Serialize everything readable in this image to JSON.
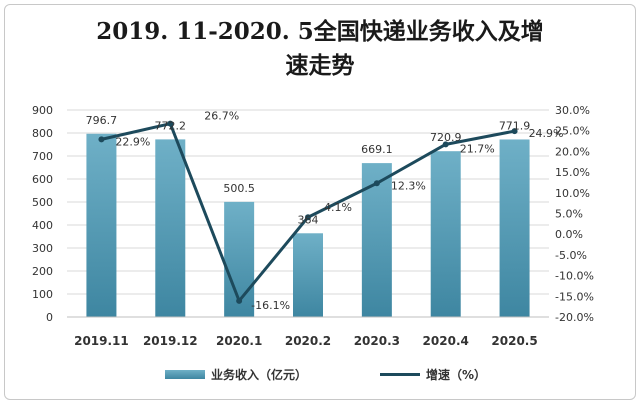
{
  "chart_data": {
    "type": "bar+line",
    "title_line1": "2019. 11-2020. 5全国快递业务收入及增",
    "title_line2": "速走势",
    "categories": [
      "2019.11",
      "2019.12",
      "2020.1",
      "2020.2",
      "2020.3",
      "2020.4",
      "2020.5"
    ],
    "series": [
      {
        "name": "业务收入（亿元）",
        "type": "bar",
        "axis": "left",
        "values": [
          796.7,
          772.2,
          500.5,
          364,
          669.1,
          720.9,
          771.9
        ],
        "labels": [
          "796.7",
          "772.2",
          "500.5",
          "364",
          "669.1",
          "720.9",
          "771.9"
        ]
      },
      {
        "name": "增速（%）",
        "type": "line",
        "axis": "right",
        "values": [
          22.9,
          26.7,
          -16.1,
          4.1,
          12.3,
          21.7,
          24.9
        ],
        "labels": [
          "22.9%",
          "26.7%",
          "-16.1%",
          "4.1%",
          "12.3%",
          "21.7%",
          "24.9%"
        ]
      }
    ],
    "y_left": {
      "min": 0,
      "max": 900,
      "step": 100,
      "ticks": [
        "0",
        "100",
        "200",
        "300",
        "400",
        "500",
        "600",
        "700",
        "800",
        "900"
      ]
    },
    "y_right": {
      "min": -20,
      "max": 30,
      "step": 5,
      "ticks": [
        "-20.0%",
        "-15.0%",
        "-10.0%",
        "-5.0%",
        "0.0%",
        "5.0%",
        "10.0%",
        "15.0%",
        "20.0%",
        "25.0%",
        "30.0%"
      ]
    },
    "grid": true,
    "legend_position": "bottom",
    "colors": {
      "bar_top": "#6fb0c7",
      "bar_bottom": "#3e86a1",
      "line": "#1d4a5c",
      "grid": "#d9d9d9",
      "text": "#333333"
    }
  }
}
